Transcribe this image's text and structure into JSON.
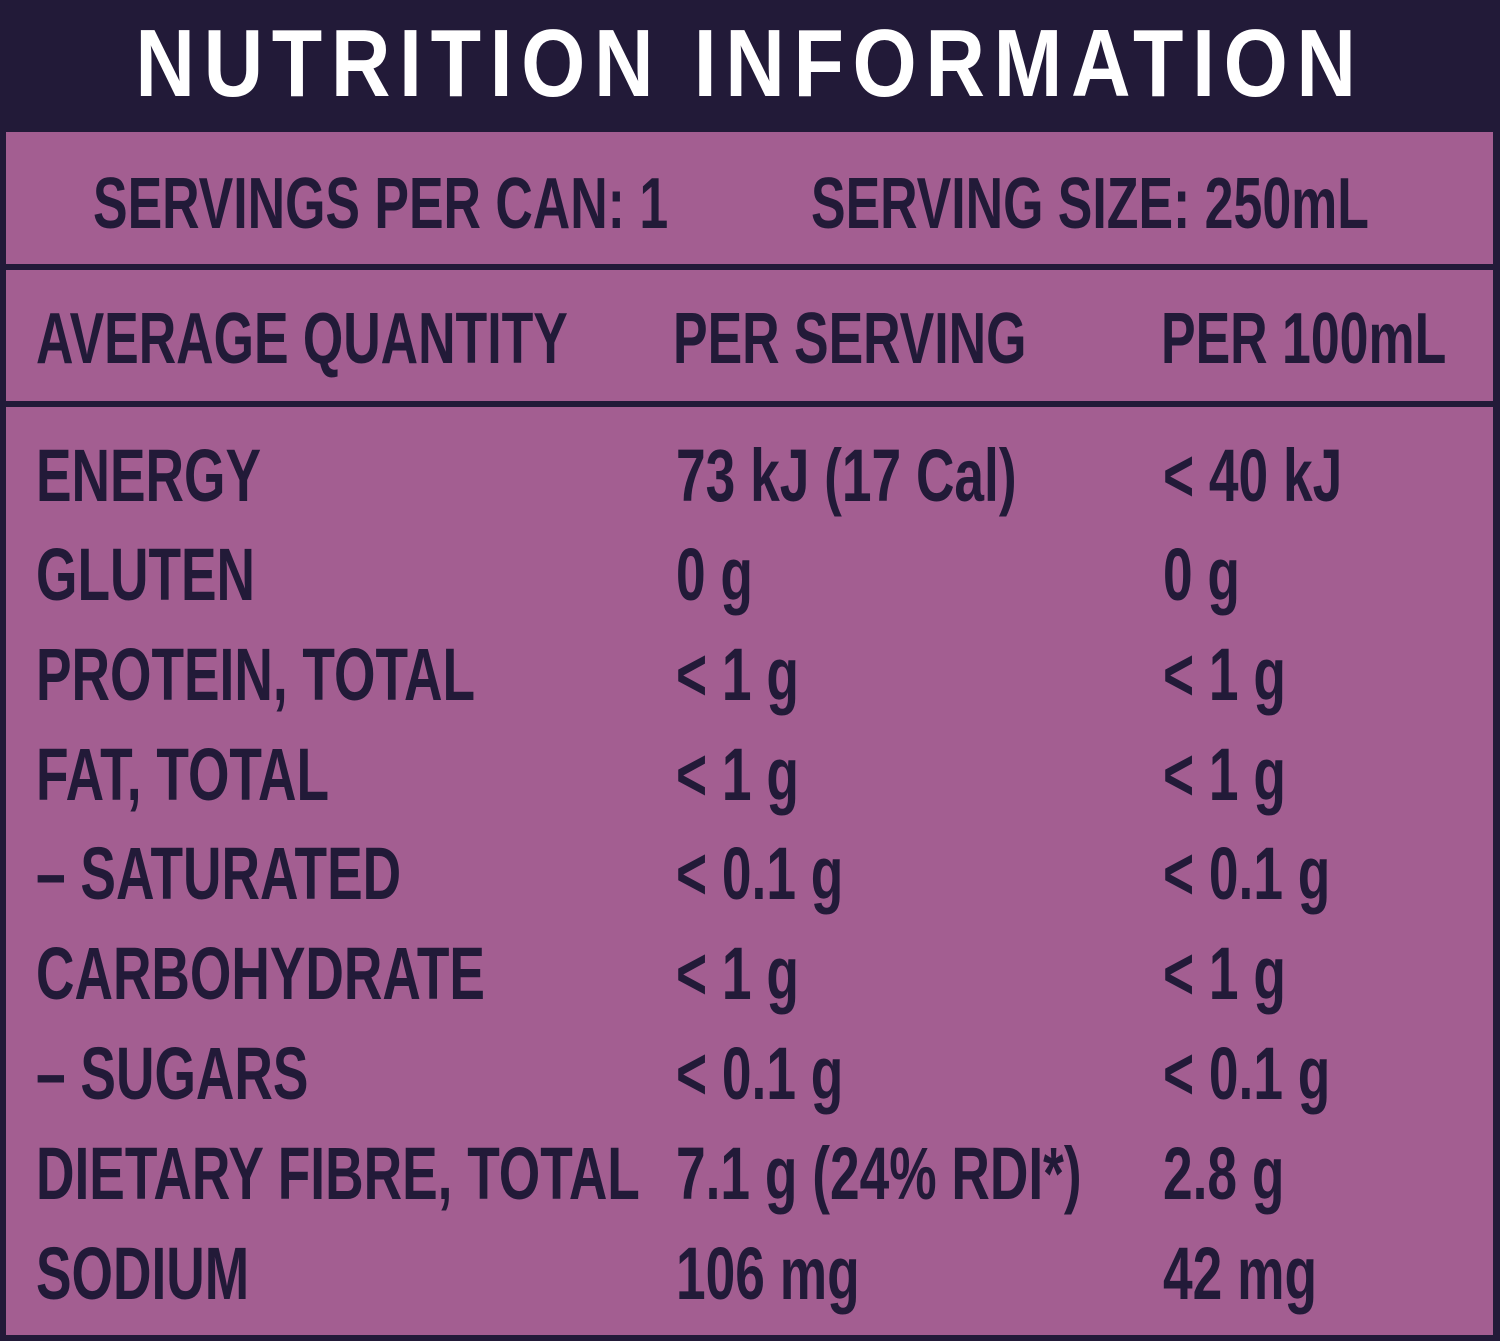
{
  "title": "NUTRITION INFORMATION",
  "servings_per_can": "SERVINGS PER CAN: 1",
  "serving_size": "SERVING SIZE: 250mL",
  "header": {
    "col1": "AVERAGE QUANTITY",
    "col2": "PER SERVING",
    "col3": "PER 100mL"
  },
  "rows": [
    {
      "label": "ENERGY",
      "per_serving": "73 kJ (17 Cal)",
      "per_100ml": "< 40 kJ"
    },
    {
      "label": "GLUTEN",
      "per_serving": "0 g",
      "per_100ml": "0 g"
    },
    {
      "label": "PROTEIN, TOTAL",
      "per_serving": "< 1 g",
      "per_100ml": "< 1 g"
    },
    {
      "label": "FAT, TOTAL",
      "per_serving": "< 1 g",
      "per_100ml": "< 1 g"
    },
    {
      "label": " – SATURATED",
      "per_serving": "< 0.1 g",
      "per_100ml": "< 0.1 g"
    },
    {
      "label": "CARBOHYDRATE",
      "per_serving": "< 1 g",
      "per_100ml": "< 1 g"
    },
    {
      "label": " – SUGARS",
      "per_serving": "< 0.1 g",
      "per_100ml": "< 0.1 g"
    },
    {
      "label": "DIETARY FIBRE, TOTAL",
      "per_serving": "7.1 g (24% RDI*)",
      "per_100ml": "2.8 g"
    },
    {
      "label": "SODIUM",
      "per_serving": "106 mg",
      "per_100ml": "42 mg"
    }
  ],
  "colors": {
    "dark": "#221a38",
    "panel": "#a35e91",
    "title_text": "#ffffff"
  }
}
